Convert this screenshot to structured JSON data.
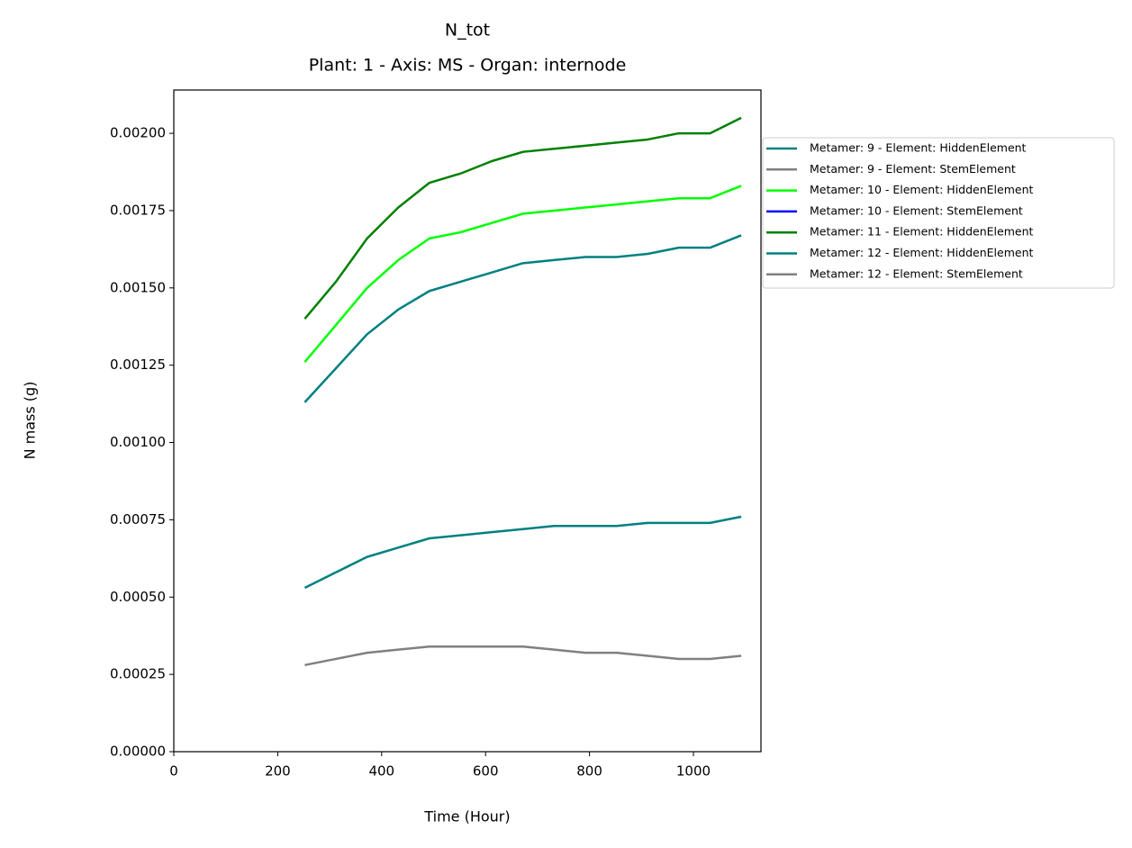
{
  "chart_data": {
    "type": "line",
    "title": "N_tot",
    "subtitle": "Plant: 1 - Axis: MS - Organ: internode",
    "x_label": "Time (Hour)",
    "y_label": "N mass (g)",
    "x": [
      252,
      312,
      372,
      432,
      492,
      552,
      612,
      672,
      732,
      792,
      852,
      912,
      972,
      1032,
      1092
    ],
    "series": [
      {
        "name": "Metamer: 9 - Element: HiddenElement",
        "color": "#008080",
        "values": [
          0.00053,
          0.00058,
          0.00063,
          0.00066,
          0.00069,
          0.0007,
          0.00071,
          0.00072,
          0.00073,
          0.00073,
          0.00073,
          0.00074,
          0.00074,
          0.00074,
          0.00076
        ]
      },
      {
        "name": "Metamer: 9 - Element: StemElement",
        "color": "#808080",
        "values": [
          0.00028,
          0.0003,
          0.00032,
          0.00033,
          0.00034,
          0.00034,
          0.00034,
          0.00034,
          0.00033,
          0.00032,
          0.00032,
          0.00031,
          0.0003,
          0.0003,
          0.00031
        ]
      },
      {
        "name": "Metamer: 10 - Element: HiddenElement",
        "color": "#00ff00",
        "values": [
          0.00126,
          0.00138,
          0.0015,
          0.00159,
          0.00166,
          0.00168,
          0.00171,
          0.00174,
          0.00175,
          0.00176,
          0.00177,
          0.00178,
          0.00179,
          0.00179,
          0.00183
        ]
      },
      {
        "name": "Metamer: 10 - Element: StemElement",
        "color": "#0000ff",
        "values": [
          null,
          null,
          null,
          null,
          null,
          null,
          null,
          null,
          null,
          null,
          null,
          null,
          null,
          null,
          null
        ]
      },
      {
        "name": "Metamer: 11 - Element: HiddenElement",
        "color": "#008000",
        "values": [
          0.0014,
          0.00152,
          0.00166,
          0.00176,
          0.00184,
          0.00187,
          0.00191,
          0.00194,
          0.00195,
          0.00196,
          0.00197,
          0.00198,
          0.002,
          0.002,
          0.00205
        ]
      },
      {
        "name": "Metamer: 12 - Element: HiddenElement",
        "color": "#008080",
        "values": [
          0.00113,
          0.00124,
          0.00135,
          0.00143,
          0.00149,
          0.00152,
          0.00155,
          0.00158,
          0.00159,
          0.0016,
          0.0016,
          0.00161,
          0.00163,
          0.00163,
          0.00167
        ]
      },
      {
        "name": "Metamer: 12 - Element: StemElement",
        "color": "#808080",
        "values": [
          null,
          null,
          null,
          null,
          null,
          null,
          null,
          null,
          null,
          null,
          null,
          null,
          null,
          null,
          null
        ]
      }
    ],
    "xlim": [
      0,
      1130
    ],
    "xticks": [
      0,
      200,
      400,
      600,
      800,
      1000
    ],
    "ylim": [
      0,
      0.00214
    ],
    "yticks": [
      {
        "value": 0,
        "label": "0.00000"
      },
      {
        "value": 0.00025,
        "label": "0.00025"
      },
      {
        "value": 0.0005,
        "label": "0.00050"
      },
      {
        "value": 0.00075,
        "label": "0.00075"
      },
      {
        "value": 0.001,
        "label": "0.00100"
      },
      {
        "value": 0.00125,
        "label": "0.00125"
      },
      {
        "value": 0.0015,
        "label": "0.00150"
      },
      {
        "value": 0.00175,
        "label": "0.00175"
      },
      {
        "value": 0.002,
        "label": "0.00200"
      }
    ],
    "grid": false,
    "legend": "outside-right"
  }
}
